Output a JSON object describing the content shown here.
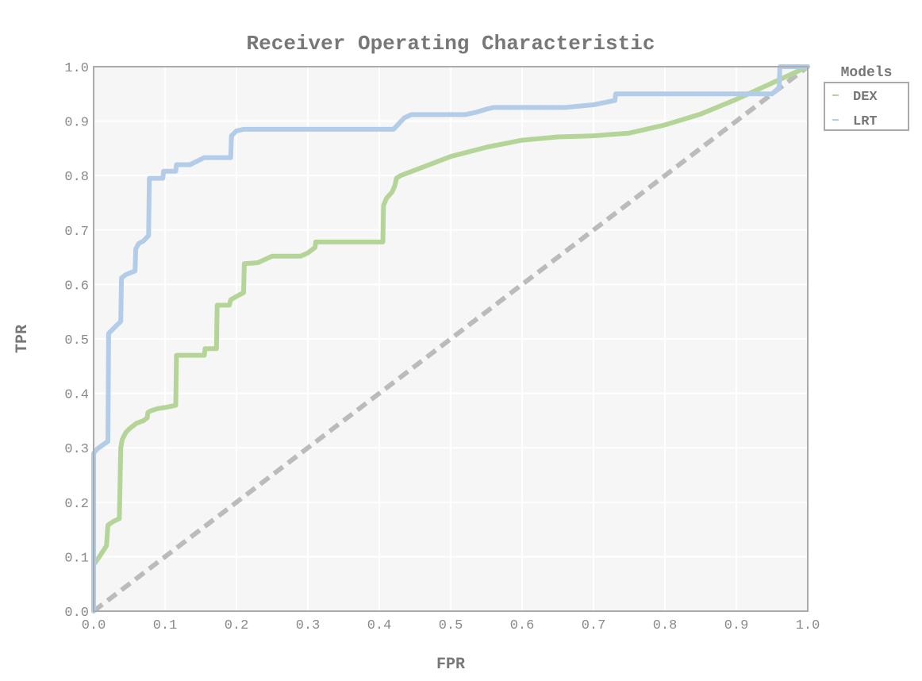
{
  "colors": {
    "plot_background": "#f6f6f6",
    "grid": "#ffffff",
    "frame": "#aaaaaa",
    "chance_line": "#bbbbbb"
  },
  "chart_data": {
    "type": "line",
    "title": "Receiver Operating Characteristic",
    "xlabel": "FPR",
    "ylabel": "TPR",
    "xlim": [
      0,
      1
    ],
    "ylim": [
      0,
      1
    ],
    "xticks": [
      "0.0",
      "0.1",
      "0.2",
      "0.3",
      "0.4",
      "0.5",
      "0.6",
      "0.7",
      "0.8",
      "0.9",
      "1.0"
    ],
    "yticks": [
      "0.0",
      "0.1",
      "0.2",
      "0.3",
      "0.4",
      "0.5",
      "0.6",
      "0.7",
      "0.8",
      "0.9",
      "1.0"
    ],
    "grid": true,
    "legend": {
      "title": "Models",
      "position": "right-outside-top"
    },
    "reference_line": {
      "x": [
        0,
        1
      ],
      "y": [
        0,
        1
      ],
      "style": "dashed"
    },
    "series": [
      {
        "name": "DEX",
        "color": "#b5d598",
        "x": [
          0.0,
          0.0,
          0.008,
          0.018,
          0.02,
          0.028,
          0.036,
          0.038,
          0.04,
          0.045,
          0.05,
          0.06,
          0.07,
          0.075,
          0.076,
          0.08,
          0.09,
          0.1,
          0.115,
          0.116,
          0.155,
          0.156,
          0.172,
          0.173,
          0.19,
          0.192,
          0.2,
          0.21,
          0.211,
          0.23,
          0.25,
          0.29,
          0.3,
          0.31,
          0.311,
          0.405,
          0.406,
          0.41,
          0.418,
          0.422,
          0.424,
          0.43,
          0.46,
          0.5,
          0.55,
          0.6,
          0.65,
          0.7,
          0.75,
          0.8,
          0.85,
          0.9,
          0.95,
          1.0
        ],
        "y": [
          0.0,
          0.085,
          0.1,
          0.12,
          0.158,
          0.165,
          0.17,
          0.3,
          0.315,
          0.328,
          0.335,
          0.345,
          0.35,
          0.355,
          0.365,
          0.368,
          0.372,
          0.374,
          0.378,
          0.47,
          0.47,
          0.482,
          0.482,
          0.562,
          0.562,
          0.572,
          0.578,
          0.585,
          0.638,
          0.64,
          0.652,
          0.652,
          0.658,
          0.668,
          0.678,
          0.678,
          0.745,
          0.758,
          0.77,
          0.782,
          0.795,
          0.8,
          0.815,
          0.835,
          0.852,
          0.865,
          0.871,
          0.873,
          0.878,
          0.893,
          0.913,
          0.94,
          0.97,
          1.0
        ]
      },
      {
        "name": "LRT",
        "color": "#b3cde8",
        "x": [
          0.0,
          0.0,
          0.005,
          0.02,
          0.021,
          0.03,
          0.038,
          0.039,
          0.045,
          0.058,
          0.059,
          0.063,
          0.07,
          0.077,
          0.078,
          0.097,
          0.098,
          0.115,
          0.116,
          0.135,
          0.155,
          0.192,
          0.193,
          0.2,
          0.21,
          0.42,
          0.425,
          0.435,
          0.445,
          0.52,
          0.535,
          0.55,
          0.56,
          0.6,
          0.66,
          0.7,
          0.73,
          0.731,
          0.95,
          0.96,
          0.961,
          1.0
        ],
        "y": [
          0.0,
          0.29,
          0.298,
          0.312,
          0.51,
          0.522,
          0.532,
          0.612,
          0.618,
          0.625,
          0.665,
          0.675,
          0.68,
          0.69,
          0.795,
          0.795,
          0.808,
          0.808,
          0.82,
          0.82,
          0.833,
          0.833,
          0.873,
          0.882,
          0.885,
          0.885,
          0.892,
          0.906,
          0.912,
          0.912,
          0.916,
          0.922,
          0.925,
          0.925,
          0.925,
          0.93,
          0.938,
          0.95,
          0.95,
          0.962,
          1.0,
          1.0
        ]
      }
    ]
  }
}
